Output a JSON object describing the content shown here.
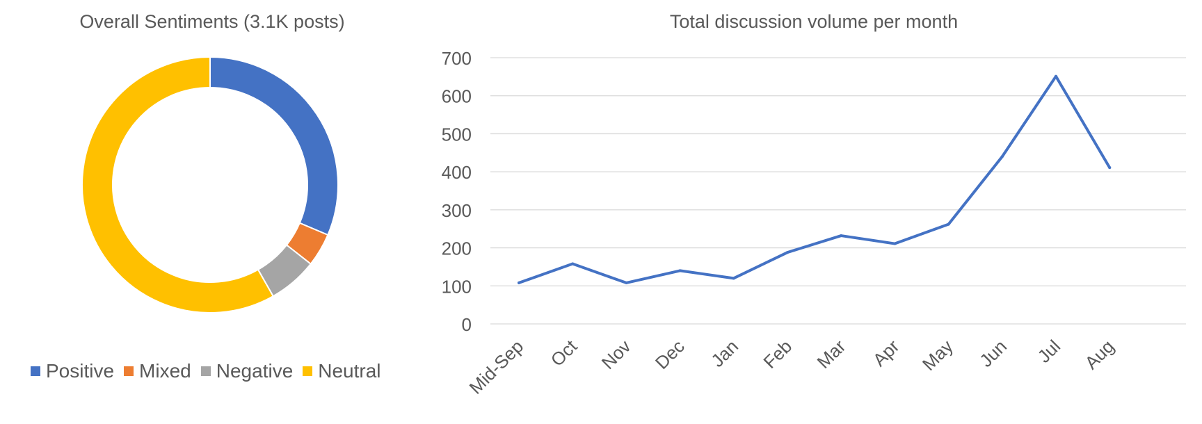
{
  "chart_data": [
    {
      "type": "pie",
      "title": "Overall Sentiments (3.1K posts)",
      "legend_position": "bottom",
      "slices": [
        {
          "label": "Positive",
          "value": 31.4,
          "color": "#4472C4"
        },
        {
          "label": "Mixed",
          "value": 4.2,
          "color": "#ED7D31"
        },
        {
          "label": "Negative",
          "value": 6.2,
          "color": "#A5A5A5"
        },
        {
          "label": "Neutral",
          "value": 58.2,
          "color": "#FFC000"
        }
      ]
    },
    {
      "type": "line",
      "title": "Total discussion volume per month",
      "categories": [
        "Mid-Sep",
        "Oct",
        "Nov",
        "Dec",
        "Jan",
        "Feb",
        "Mar",
        "Apr",
        "May",
        "Jun",
        "Jul",
        "Aug"
      ],
      "series": [
        {
          "values": [
            108,
            158,
            108,
            140,
            120,
            188,
            232,
            211,
            262,
            440,
            651,
            411
          ],
          "color": "#4472C4"
        }
      ],
      "ylim": [
        0,
        700
      ],
      "yticks": [
        "0",
        "100",
        "200",
        "300",
        "400",
        "500",
        "600",
        "700"
      ],
      "grid": true
    }
  ]
}
